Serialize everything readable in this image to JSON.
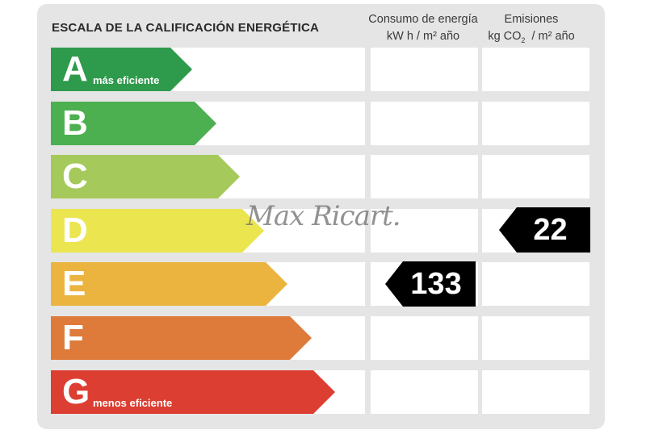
{
  "title": "ESCALA DE LA CALIFICACIÓN ENERGÉTICA",
  "columns": {
    "consumo": {
      "line1": "Consumo de energía",
      "line2": "kW h  / m² año"
    },
    "emisiones": {
      "line1": "Emisiones",
      "line2_pre": "kg CO",
      "line2_sub": "2",
      "line2_post": "  / m² año"
    }
  },
  "classes": [
    {
      "letter": "A",
      "sub": "más eficiente",
      "color": "#2e9a4b"
    },
    {
      "letter": "B",
      "sub": "",
      "color": "#4caf50"
    },
    {
      "letter": "C",
      "sub": "",
      "color": "#a5c95a"
    },
    {
      "letter": "D",
      "sub": "",
      "color": "#ebe64f"
    },
    {
      "letter": "E",
      "sub": "",
      "color": "#ebb43e"
    },
    {
      "letter": "F",
      "sub": "",
      "color": "#de7a3a"
    },
    {
      "letter": "G",
      "sub": "menos eficiente",
      "color": "#dd3e32"
    }
  ],
  "consumo_rating": {
    "class": "E",
    "value": "133"
  },
  "emisiones_rating": {
    "class": "D",
    "value": "22"
  },
  "watermark": "Max Ricart."
}
